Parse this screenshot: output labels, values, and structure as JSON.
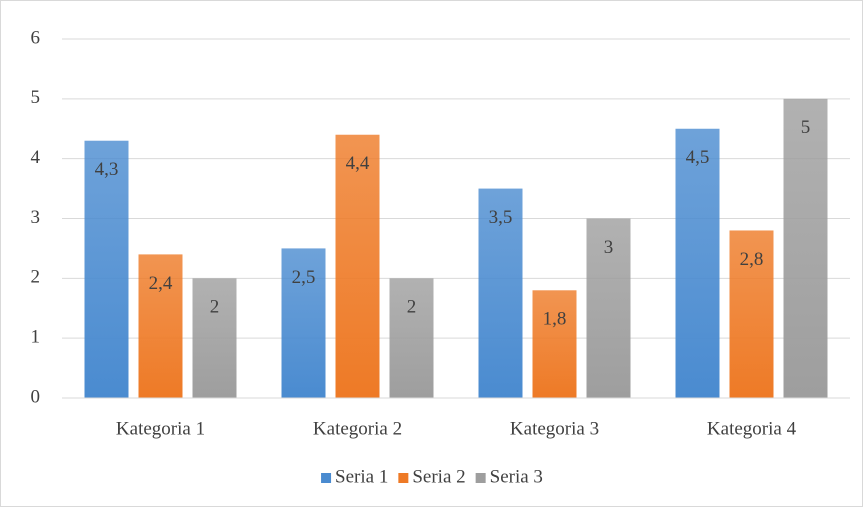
{
  "chart_data": {
    "type": "bar",
    "categories": [
      "Kategoria 1",
      "Kategoria 2",
      "Kategoria 3",
      "Kategoria 4"
    ],
    "series": [
      {
        "name": "Seria 1",
        "color": "#4a8bd0",
        "values": [
          4.3,
          2.5,
          3.5,
          4.5
        ],
        "value_labels": [
          "4,3",
          "2,5",
          "3,5",
          "4,5"
        ]
      },
      {
        "name": "Seria 2",
        "color": "#ee7a26",
        "values": [
          2.4,
          4.4,
          1.8,
          2.8
        ],
        "value_labels": [
          "2,4",
          "4,4",
          "1,8",
          "2,8"
        ]
      },
      {
        "name": "Seria 3",
        "color": "#9e9e9e",
        "values": [
          2,
          2,
          3,
          5
        ],
        "value_labels": [
          "2",
          "2",
          "3",
          "5"
        ]
      }
    ],
    "ylim": [
      0,
      6
    ],
    "yticks": [
      0,
      1,
      2,
      3,
      4,
      5,
      6
    ],
    "grid": true,
    "legend": "bottom"
  }
}
